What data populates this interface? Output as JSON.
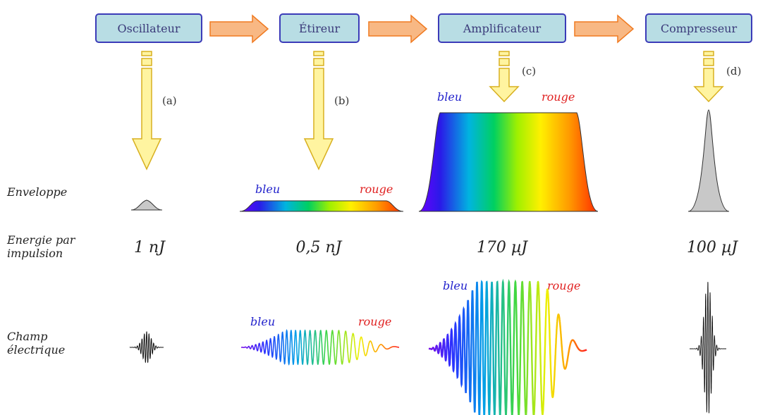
{
  "stages": [
    {
      "label": "Oscillateur",
      "letter": "(a)",
      "energy": "1 nJ"
    },
    {
      "label": "Étireur",
      "letter": "(b)",
      "energy": "0,5 nJ"
    },
    {
      "label": "Amplificateur",
      "letter": "(c)",
      "energy": "170 µJ"
    },
    {
      "label": "Compresseur",
      "letter": "(d)",
      "energy": "100 µJ"
    }
  ],
  "rows": {
    "enveloppe": "Enveloppe",
    "energie_line1": "Energie par",
    "energie_line2": "impulsion",
    "champ_line1": "Champ",
    "champ_line2": "électrique"
  },
  "spectrum_labels": {
    "blue": "bleu",
    "red": "rouge"
  },
  "colors": {
    "box_fill": "#b8dde4",
    "box_stroke": "#3b3bb8",
    "flow_arrow_fill": "#f8b884",
    "flow_arrow_stroke": "#f07a20",
    "down_arrow_fill": "#fff4a0",
    "down_arrow_stroke": "#d8b020",
    "gray_pulse": "#c8c8c8"
  }
}
